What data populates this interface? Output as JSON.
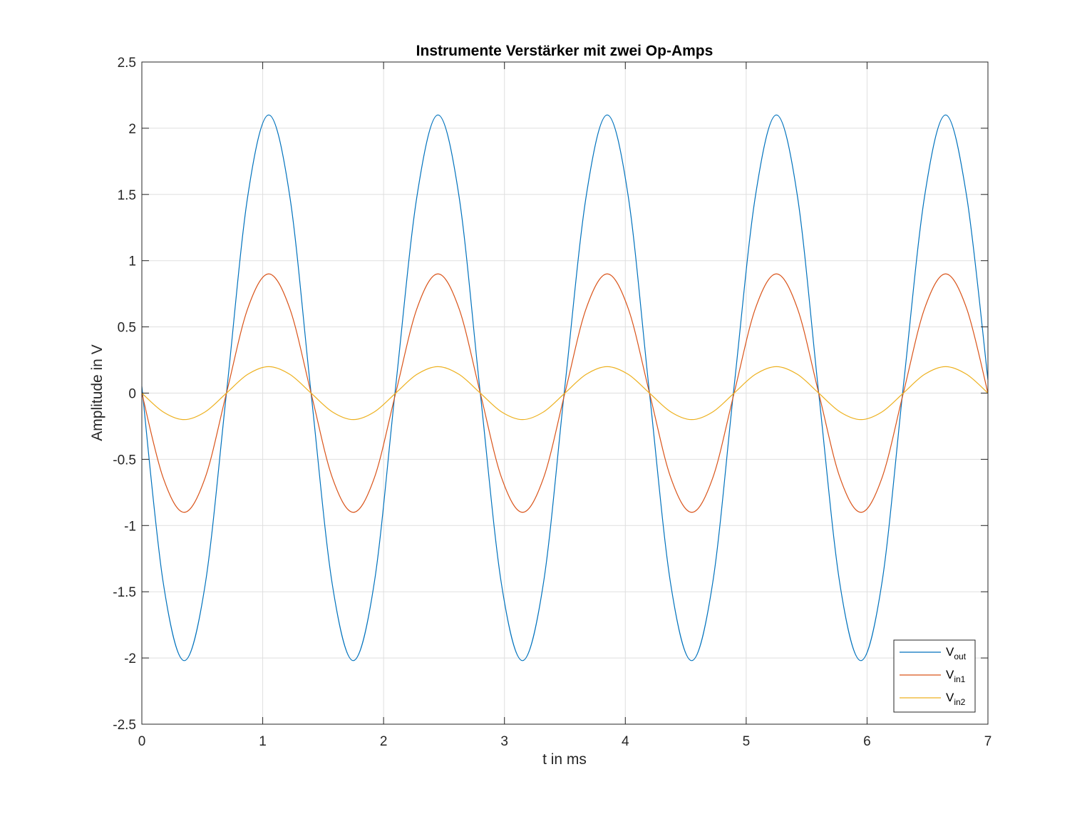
{
  "chart_data": {
    "type": "line",
    "title": "Instrumente Verstärker mit zwei Op-Amps",
    "xlabel": "t in ms",
    "ylabel": "Amplitude in V",
    "xlim": [
      0,
      7
    ],
    "ylim": [
      -2.5,
      2.5
    ],
    "xticks": [
      0,
      1,
      2,
      3,
      4,
      5,
      6,
      7
    ],
    "xtick_labels": [
      "0",
      "1",
      "2",
      "3",
      "4",
      "5",
      "6",
      "7"
    ],
    "yticks": [
      2.5,
      2,
      1.5,
      1,
      0.5,
      0,
      -0.5,
      -1,
      -1.5,
      -2,
      -2.5
    ],
    "ytick_labels": [
      "2.5",
      "2",
      "1.5",
      "1",
      "0.5",
      "0",
      "-0.5",
      "-1",
      "-1.5",
      "-2",
      "-2.5"
    ],
    "grid": true,
    "legend_position": "bottom-right",
    "x": [
      0,
      0.175,
      0.35,
      0.525,
      0.7,
      0.875,
      1.05,
      1.225,
      1.4,
      1.575,
      1.75,
      1.925,
      2.1,
      2.275,
      2.45,
      2.625,
      2.8,
      2.975,
      3.15,
      3.325,
      3.5,
      3.675,
      3.85,
      4.025,
      4.2,
      4.375,
      4.55,
      4.725,
      4.9,
      5.075,
      5.25,
      5.425,
      5.6,
      5.775,
      5.95,
      6.125,
      6.3,
      6.475,
      6.65,
      6.825,
      7.0
    ],
    "series": [
      {
        "name": "V_out",
        "label_main": "V",
        "label_sub": "out",
        "color": "#0072BD",
        "values": [
          0.05,
          -1.42,
          -2.02,
          -1.44,
          0.0,
          1.48,
          2.1,
          1.48,
          0.0,
          -1.44,
          -2.02,
          -1.42,
          0.05,
          1.48,
          2.1,
          1.48,
          0.0,
          -1.44,
          -2.02,
          -1.42,
          0.05,
          1.48,
          2.1,
          1.48,
          0.0,
          -1.44,
          -2.02,
          -1.42,
          0.05,
          1.48,
          2.1,
          1.48,
          0.0,
          -1.44,
          -2.02,
          -1.42,
          0.05,
          1.48,
          2.1,
          1.48,
          0.1
        ]
      },
      {
        "name": "V_in1",
        "label_main": "V",
        "label_sub": "in1",
        "color": "#D95319",
        "values": [
          0.0,
          -0.636,
          -0.9,
          -0.636,
          0.0,
          0.636,
          0.9,
          0.636,
          0.0,
          -0.636,
          -0.9,
          -0.636,
          0.0,
          0.636,
          0.9,
          0.636,
          0.0,
          -0.636,
          -0.9,
          -0.636,
          0.0,
          0.636,
          0.9,
          0.636,
          0.0,
          -0.636,
          -0.9,
          -0.636,
          0.0,
          0.636,
          0.9,
          0.636,
          0.0,
          -0.636,
          -0.9,
          -0.636,
          0.0,
          0.636,
          0.9,
          0.636,
          0.0
        ]
      },
      {
        "name": "V_in2",
        "label_main": "V",
        "label_sub": "in2",
        "color": "#EDB120",
        "values": [
          0.0,
          -0.141,
          -0.2,
          -0.141,
          0.0,
          0.141,
          0.2,
          0.141,
          0.0,
          -0.141,
          -0.2,
          -0.141,
          0.0,
          0.141,
          0.2,
          0.141,
          0.0,
          -0.141,
          -0.2,
          -0.141,
          0.0,
          0.141,
          0.2,
          0.141,
          0.0,
          -0.141,
          -0.2,
          -0.141,
          0.0,
          0.141,
          0.2,
          0.141,
          0.0,
          -0.141,
          -0.2,
          -0.141,
          0.0,
          0.141,
          0.2,
          0.141,
          0.0
        ]
      }
    ]
  }
}
